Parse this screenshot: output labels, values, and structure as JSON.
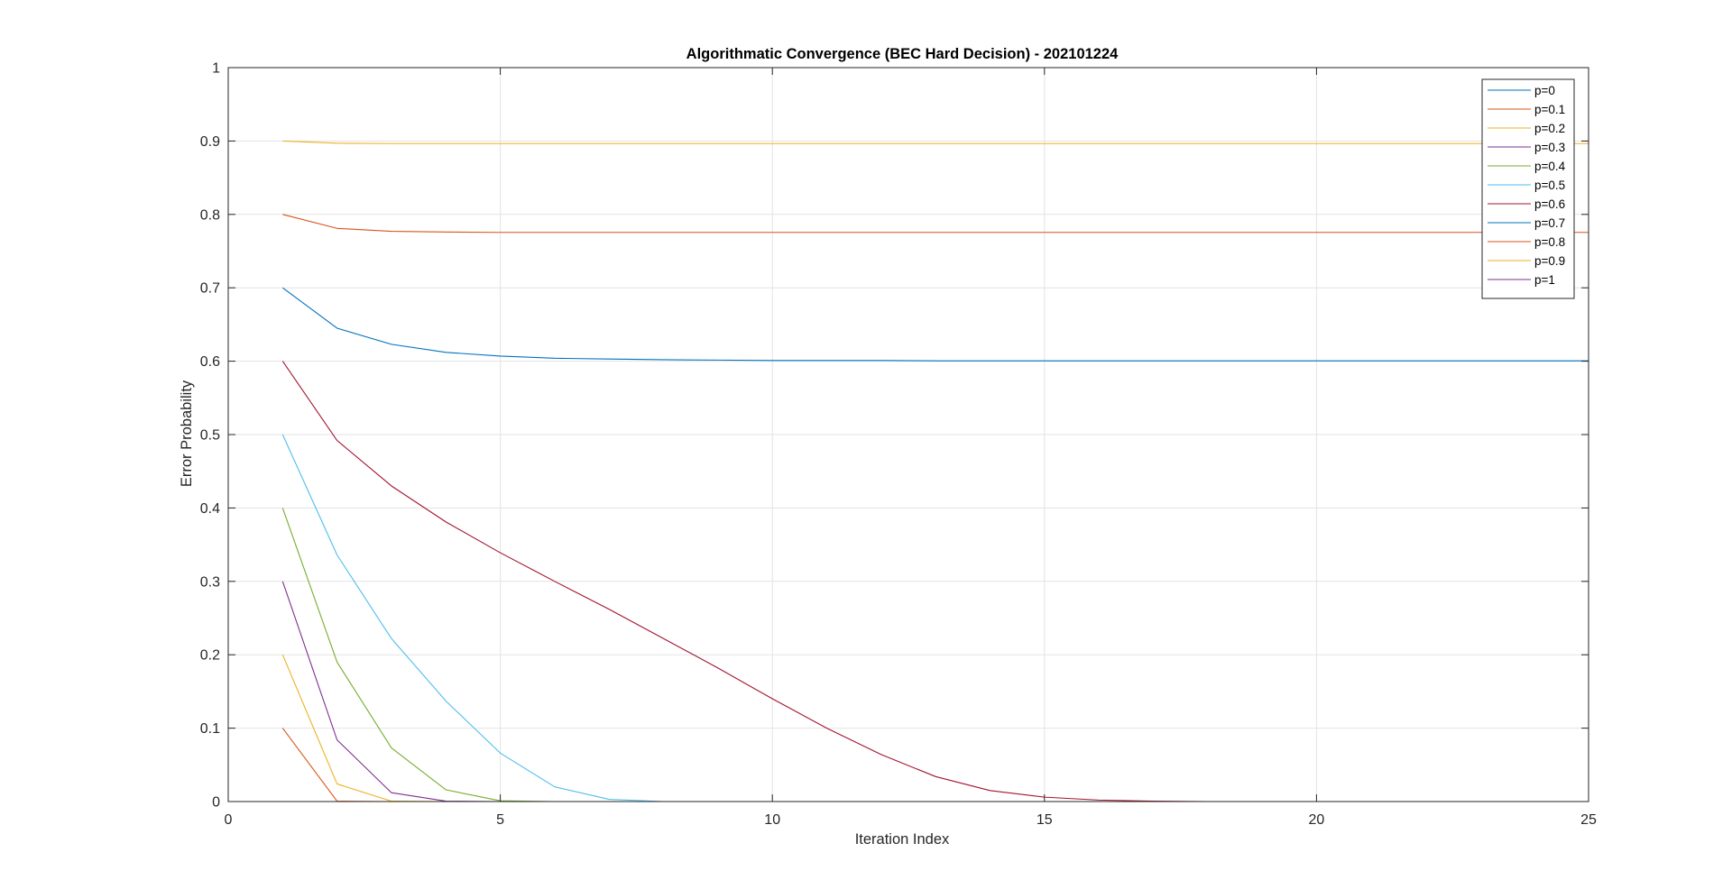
{
  "chart_data": {
    "type": "line",
    "title": "Algorithmatic Convergence (BEC Hard Decision) - 202101224",
    "xlabel": "Iteration Index",
    "ylabel": "Error Probability",
    "xlim": [
      0,
      25
    ],
    "ylim": [
      0,
      1
    ],
    "xticks": [
      "0",
      "5",
      "10",
      "15",
      "20",
      "25"
    ],
    "yticks": [
      "0",
      "0.1",
      "0.2",
      "0.3",
      "0.4",
      "0.5",
      "0.6",
      "0.7",
      "0.8",
      "0.9",
      "1"
    ],
    "grid": true,
    "legend_position": "top-right",
    "x": [
      1,
      2,
      3,
      4,
      5,
      6,
      7,
      8,
      9,
      10,
      11,
      12,
      13,
      14,
      15,
      16,
      17,
      18,
      19,
      20,
      21,
      22,
      23,
      24,
      25
    ],
    "series": [
      {
        "name": "p=0",
        "color": "#0072BD",
        "values": [
          0,
          0,
          0,
          0,
          0,
          0,
          0,
          0,
          0,
          0,
          0,
          0,
          0,
          0,
          0,
          0,
          0,
          0,
          0,
          0,
          0,
          0,
          0,
          0,
          0
        ]
      },
      {
        "name": "p=0.1",
        "color": "#D95319",
        "values": [
          0.1,
          0.0005,
          0,
          0,
          0,
          0,
          0,
          0,
          0,
          0,
          0,
          0,
          0,
          0,
          0,
          0,
          0,
          0,
          0,
          0,
          0,
          0,
          0,
          0,
          0
        ]
      },
      {
        "name": "p=0.2",
        "color": "#EDB120",
        "values": [
          0.2,
          0.024,
          0.0005,
          0,
          0,
          0,
          0,
          0,
          0,
          0,
          0,
          0,
          0,
          0,
          0,
          0,
          0,
          0,
          0,
          0,
          0,
          0,
          0,
          0,
          0
        ]
      },
      {
        "name": "p=0.3",
        "color": "#7E2F8E",
        "values": [
          0.3,
          0.084,
          0.012,
          0.0005,
          0,
          0,
          0,
          0,
          0,
          0,
          0,
          0,
          0,
          0,
          0,
          0,
          0,
          0,
          0,
          0,
          0,
          0,
          0,
          0,
          0
        ]
      },
      {
        "name": "p=0.4",
        "color": "#77AC30",
        "values": [
          0.4,
          0.19,
          0.073,
          0.016,
          0.001,
          0,
          0,
          0,
          0,
          0,
          0,
          0,
          0,
          0,
          0,
          0,
          0,
          0,
          0,
          0,
          0,
          0,
          0,
          0,
          0
        ]
      },
      {
        "name": "p=0.5",
        "color": "#4DBEEE",
        "values": [
          0.5,
          0.336,
          0.222,
          0.137,
          0.066,
          0.02,
          0.003,
          0,
          0,
          0,
          0,
          0,
          0,
          0,
          0,
          0,
          0,
          0,
          0,
          0,
          0,
          0,
          0,
          0,
          0
        ]
      },
      {
        "name": "p=0.6",
        "color": "#A2142F",
        "values": [
          0.6,
          0.492,
          0.43,
          0.381,
          0.339,
          0.3,
          0.262,
          0.222,
          0.182,
          0.14,
          0.1,
          0.064,
          0.034,
          0.015,
          0.006,
          0.002,
          0.0005,
          0,
          0,
          0,
          0,
          0,
          0,
          0,
          0
        ]
      },
      {
        "name": "p=0.7",
        "color": "#0072BD",
        "values": [
          0.7,
          0.645,
          0.623,
          0.612,
          0.607,
          0.604,
          0.603,
          0.602,
          0.6015,
          0.601,
          0.601,
          0.601,
          0.6005,
          0.6005,
          0.6005,
          0.6005,
          0.6005,
          0.6005,
          0.6005,
          0.6005,
          0.6005,
          0.6005,
          0.6005,
          0.6005,
          0.6005
        ]
      },
      {
        "name": "p=0.8",
        "color": "#D95319",
        "values": [
          0.8,
          0.781,
          0.777,
          0.776,
          0.7755,
          0.7755,
          0.7755,
          0.7755,
          0.7755,
          0.7755,
          0.7755,
          0.7755,
          0.7755,
          0.7755,
          0.7755,
          0.7755,
          0.7755,
          0.7755,
          0.7755,
          0.7755,
          0.7755,
          0.7755,
          0.7755,
          0.7755,
          0.7755
        ]
      },
      {
        "name": "p=0.9",
        "color": "#EDB120",
        "values": [
          0.9,
          0.897,
          0.8965,
          0.8965,
          0.8965,
          0.8965,
          0.8965,
          0.8965,
          0.8965,
          0.8965,
          0.8965,
          0.8965,
          0.8965,
          0.8965,
          0.8965,
          0.8965,
          0.8965,
          0.8965,
          0.8965,
          0.8965,
          0.8965,
          0.8965,
          0.8965,
          0.8965,
          0.8965
        ]
      },
      {
        "name": "p=1",
        "color": "#7E2F8E",
        "values": [
          1,
          1,
          1,
          1,
          1,
          1,
          1,
          1,
          1,
          1,
          1,
          1,
          1,
          1,
          1,
          1,
          1,
          1,
          1,
          1,
          1,
          1,
          1,
          1,
          1
        ]
      }
    ]
  }
}
